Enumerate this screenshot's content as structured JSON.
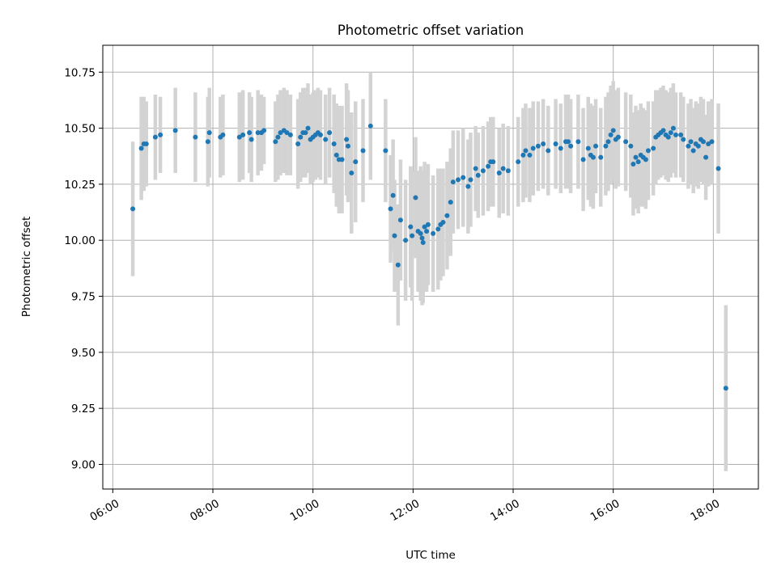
{
  "chart_data": {
    "type": "scatter",
    "title": "Photometric offset variation",
    "xlabel": "UTC time",
    "ylabel": "Photometric offset",
    "x_unit": "hours (UTC)",
    "xlim": [
      5.8,
      18.9
    ],
    "ylim": [
      8.89,
      10.87
    ],
    "x_ticks": [
      {
        "value": 6,
        "label": "06:00"
      },
      {
        "value": 8,
        "label": "08:00"
      },
      {
        "value": 10,
        "label": "10:00"
      },
      {
        "value": 12,
        "label": "12:00"
      },
      {
        "value": 14,
        "label": "14:00"
      },
      {
        "value": 16,
        "label": "16:00"
      },
      {
        "value": 18,
        "label": "18:00"
      }
    ],
    "y_ticks": [
      {
        "value": 9.0,
        "label": "9.00"
      },
      {
        "value": 9.25,
        "label": "9.25"
      },
      {
        "value": 9.5,
        "label": "9.50"
      },
      {
        "value": 9.75,
        "label": "9.75"
      },
      {
        "value": 10.0,
        "label": "10.00"
      },
      {
        "value": 10.25,
        "label": "10.25"
      },
      {
        "value": 10.5,
        "label": "10.50"
      },
      {
        "value": 10.75,
        "label": "10.75"
      }
    ],
    "grid": true,
    "marker_color": "#1f77b4",
    "errorbar_color": "#d3d3d3",
    "points": [
      [
        6.4,
        10.14,
        0.3
      ],
      [
        6.57,
        10.41,
        0.23
      ],
      [
        6.62,
        10.43,
        0.21
      ],
      [
        6.67,
        10.43,
        0.19
      ],
      [
        6.85,
        10.46,
        0.19
      ],
      [
        6.95,
        10.47,
        0.17
      ],
      [
        7.25,
        10.49,
        0.19
      ],
      [
        7.65,
        10.46,
        0.2
      ],
      [
        7.9,
        10.44,
        0.2
      ],
      [
        7.93,
        10.48,
        0.2
      ],
      [
        8.15,
        10.46,
        0.18
      ],
      [
        8.2,
        10.47,
        0.18
      ],
      [
        8.53,
        10.46,
        0.2
      ],
      [
        8.6,
        10.47,
        0.2
      ],
      [
        8.73,
        10.48,
        0.18
      ],
      [
        8.77,
        10.45,
        0.19
      ],
      [
        8.9,
        10.48,
        0.19
      ],
      [
        8.97,
        10.48,
        0.17
      ],
      [
        9.02,
        10.49,
        0.15
      ],
      [
        9.25,
        10.44,
        0.18
      ],
      [
        9.3,
        10.46,
        0.19
      ],
      [
        9.35,
        10.48,
        0.19
      ],
      [
        9.42,
        10.49,
        0.19
      ],
      [
        9.48,
        10.48,
        0.19
      ],
      [
        9.55,
        10.47,
        0.18
      ],
      [
        9.7,
        10.43,
        0.2
      ],
      [
        9.75,
        10.46,
        0.2
      ],
      [
        9.8,
        10.48,
        0.2
      ],
      [
        9.85,
        10.48,
        0.2
      ],
      [
        9.9,
        10.5,
        0.2
      ],
      [
        9.95,
        10.45,
        0.2
      ],
      [
        10.0,
        10.46,
        0.2
      ],
      [
        10.05,
        10.47,
        0.2
      ],
      [
        10.1,
        10.48,
        0.2
      ],
      [
        10.15,
        10.47,
        0.2
      ],
      [
        10.25,
        10.45,
        0.2
      ],
      [
        10.33,
        10.48,
        0.2
      ],
      [
        10.42,
        10.43,
        0.22
      ],
      [
        10.47,
        10.38,
        0.23
      ],
      [
        10.52,
        10.36,
        0.24
      ],
      [
        10.58,
        10.36,
        0.24
      ],
      [
        10.67,
        10.45,
        0.25
      ],
      [
        10.7,
        10.42,
        0.25
      ],
      [
        10.77,
        10.3,
        0.27
      ],
      [
        10.85,
        10.35,
        0.27
      ],
      [
        11.0,
        10.4,
        0.23
      ],
      [
        11.15,
        10.51,
        0.24
      ],
      [
        11.45,
        10.4,
        0.23
      ],
      [
        11.55,
        10.14,
        0.24
      ],
      [
        11.6,
        10.2,
        0.25
      ],
      [
        11.63,
        10.02,
        0.25
      ],
      [
        11.7,
        9.89,
        0.27
      ],
      [
        11.75,
        10.09,
        0.27
      ],
      [
        11.85,
        10.0,
        0.27
      ],
      [
        11.95,
        10.06,
        0.27
      ],
      [
        11.98,
        10.02,
        0.29
      ],
      [
        12.05,
        10.19,
        0.27
      ],
      [
        12.1,
        10.04,
        0.27
      ],
      [
        12.15,
        10.03,
        0.3
      ],
      [
        12.18,
        10.01,
        0.3
      ],
      [
        12.2,
        9.99,
        0.27
      ],
      [
        12.23,
        10.06,
        0.29
      ],
      [
        12.27,
        10.04,
        0.27
      ],
      [
        12.3,
        10.07,
        0.27
      ],
      [
        12.4,
        10.03,
        0.26
      ],
      [
        12.5,
        10.05,
        0.27
      ],
      [
        12.55,
        10.07,
        0.25
      ],
      [
        12.6,
        10.08,
        0.24
      ],
      [
        12.68,
        10.11,
        0.24
      ],
      [
        12.75,
        10.17,
        0.24
      ],
      [
        12.8,
        10.26,
        0.23
      ],
      [
        12.9,
        10.27,
        0.22
      ],
      [
        13.0,
        10.28,
        0.22
      ],
      [
        13.1,
        10.24,
        0.21
      ],
      [
        13.15,
        10.27,
        0.21
      ],
      [
        13.25,
        10.32,
        0.19
      ],
      [
        13.3,
        10.29,
        0.19
      ],
      [
        13.4,
        10.31,
        0.2
      ],
      [
        13.5,
        10.33,
        0.2
      ],
      [
        13.55,
        10.35,
        0.2
      ],
      [
        13.6,
        10.35,
        0.2
      ],
      [
        13.72,
        10.3,
        0.2
      ],
      [
        13.8,
        10.32,
        0.2
      ],
      [
        13.9,
        10.31,
        0.2
      ],
      [
        14.1,
        10.35,
        0.2
      ],
      [
        14.2,
        10.38,
        0.21
      ],
      [
        14.25,
        10.4,
        0.21
      ],
      [
        14.33,
        10.38,
        0.21
      ],
      [
        14.4,
        10.41,
        0.21
      ],
      [
        14.5,
        10.42,
        0.2
      ],
      [
        14.6,
        10.43,
        0.2
      ],
      [
        14.7,
        10.4,
        0.2
      ],
      [
        14.85,
        10.43,
        0.2
      ],
      [
        14.95,
        10.41,
        0.2
      ],
      [
        15.05,
        10.44,
        0.21
      ],
      [
        15.1,
        10.44,
        0.21
      ],
      [
        15.15,
        10.42,
        0.21
      ],
      [
        15.3,
        10.44,
        0.21
      ],
      [
        15.4,
        10.36,
        0.23
      ],
      [
        15.5,
        10.41,
        0.23
      ],
      [
        15.55,
        10.38,
        0.23
      ],
      [
        15.6,
        10.37,
        0.23
      ],
      [
        15.65,
        10.42,
        0.21
      ],
      [
        15.75,
        10.37,
        0.22
      ],
      [
        15.85,
        10.42,
        0.22
      ],
      [
        15.9,
        10.44,
        0.22
      ],
      [
        15.95,
        10.47,
        0.22
      ],
      [
        16.0,
        10.49,
        0.22
      ],
      [
        16.05,
        10.45,
        0.22
      ],
      [
        16.1,
        10.46,
        0.22
      ],
      [
        16.25,
        10.44,
        0.22
      ],
      [
        16.35,
        10.42,
        0.23
      ],
      [
        16.4,
        10.34,
        0.23
      ],
      [
        16.45,
        10.37,
        0.23
      ],
      [
        16.5,
        10.35,
        0.23
      ],
      [
        16.55,
        10.38,
        0.23
      ],
      [
        16.6,
        10.37,
        0.22
      ],
      [
        16.65,
        10.36,
        0.22
      ],
      [
        16.7,
        10.4,
        0.22
      ],
      [
        16.8,
        10.41,
        0.21
      ],
      [
        16.85,
        10.46,
        0.21
      ],
      [
        16.9,
        10.47,
        0.2
      ],
      [
        16.95,
        10.48,
        0.2
      ],
      [
        17.0,
        10.49,
        0.2
      ],
      [
        17.05,
        10.47,
        0.2
      ],
      [
        17.1,
        10.46,
        0.2
      ],
      [
        17.15,
        10.48,
        0.2
      ],
      [
        17.2,
        10.5,
        0.2
      ],
      [
        17.25,
        10.47,
        0.19
      ],
      [
        17.35,
        10.47,
        0.19
      ],
      [
        17.4,
        10.45,
        0.19
      ],
      [
        17.5,
        10.42,
        0.19
      ],
      [
        17.55,
        10.44,
        0.19
      ],
      [
        17.6,
        10.4,
        0.19
      ],
      [
        17.65,
        10.43,
        0.19
      ],
      [
        17.7,
        10.42,
        0.19
      ],
      [
        17.75,
        10.45,
        0.19
      ],
      [
        17.8,
        10.44,
        0.19
      ],
      [
        17.85,
        10.37,
        0.19
      ],
      [
        17.9,
        10.43,
        0.19
      ],
      [
        17.97,
        10.44,
        0.19
      ],
      [
        18.1,
        10.32,
        0.29
      ],
      [
        18.25,
        9.34,
        0.37
      ]
    ]
  }
}
